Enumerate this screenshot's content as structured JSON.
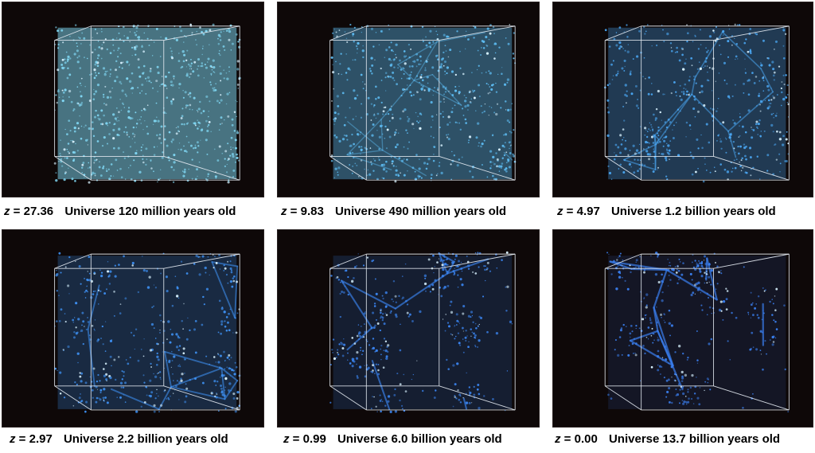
{
  "panels": [
    {
      "z_symbol": "z",
      "z_value": "= 27.36",
      "age": "Universe 120 million years old",
      "color": "#7fd6f2",
      "density": 0.95,
      "clumping": 0.0
    },
    {
      "z_symbol": "z",
      "z_value": "= 9.83",
      "age": "Universe 490 million years old",
      "color": "#5cbaf0",
      "density": 0.75,
      "clumping": 0.25
    },
    {
      "z_symbol": "z",
      "z_value": "= 4.97",
      "age": "Universe 1.2 billion years old",
      "color": "#4aa6f2",
      "density": 0.58,
      "clumping": 0.45
    },
    {
      "z_symbol": "z",
      "z_value": "= 2.97",
      "age": "Universe 2.2 billion years old",
      "color": "#3d8ff0",
      "density": 0.45,
      "clumping": 0.6
    },
    {
      "z_symbol": "z",
      "z_value": "= 0.99",
      "age": "Universe 6.0 billion years old",
      "color": "#3a84f0",
      "density": 0.32,
      "clumping": 0.75
    },
    {
      "z_symbol": "z",
      "z_value": "= 0.00",
      "age": "Universe 13.7 billion years old",
      "color": "#3a7ff0",
      "density": 0.24,
      "clumping": 0.85
    }
  ]
}
